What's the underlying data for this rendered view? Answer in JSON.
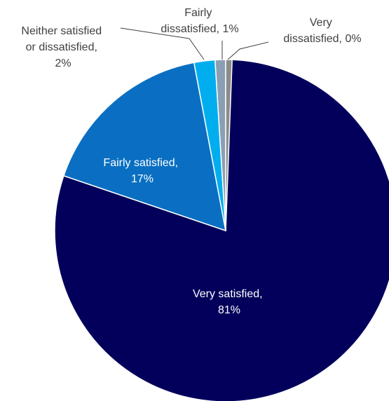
{
  "chart_data": {
    "type": "pie",
    "title": "",
    "slices": [
      {
        "label_line1": "Very satisfied,",
        "label_line2": "81%",
        "value": 81,
        "color": "#02005b"
      },
      {
        "label_line1": "Fairly satisfied,",
        "label_line2": "17%",
        "value": 17,
        "color": "#0a6fc2"
      },
      {
        "label_line1": "Neither satisfied",
        "label_line2": "or dissatisfied,",
        "label_line3": "2%",
        "value": 2,
        "color": "#00aeef"
      },
      {
        "label_line1": "Fairly",
        "label_line2": "dissatisfied, 1%",
        "value": 1,
        "color": "#8a9fb3"
      },
      {
        "label_line1": "Very",
        "label_line2": "dissatisfied, 0%",
        "value": 0,
        "color": "#8c8c8c"
      }
    ],
    "legend": "none"
  }
}
